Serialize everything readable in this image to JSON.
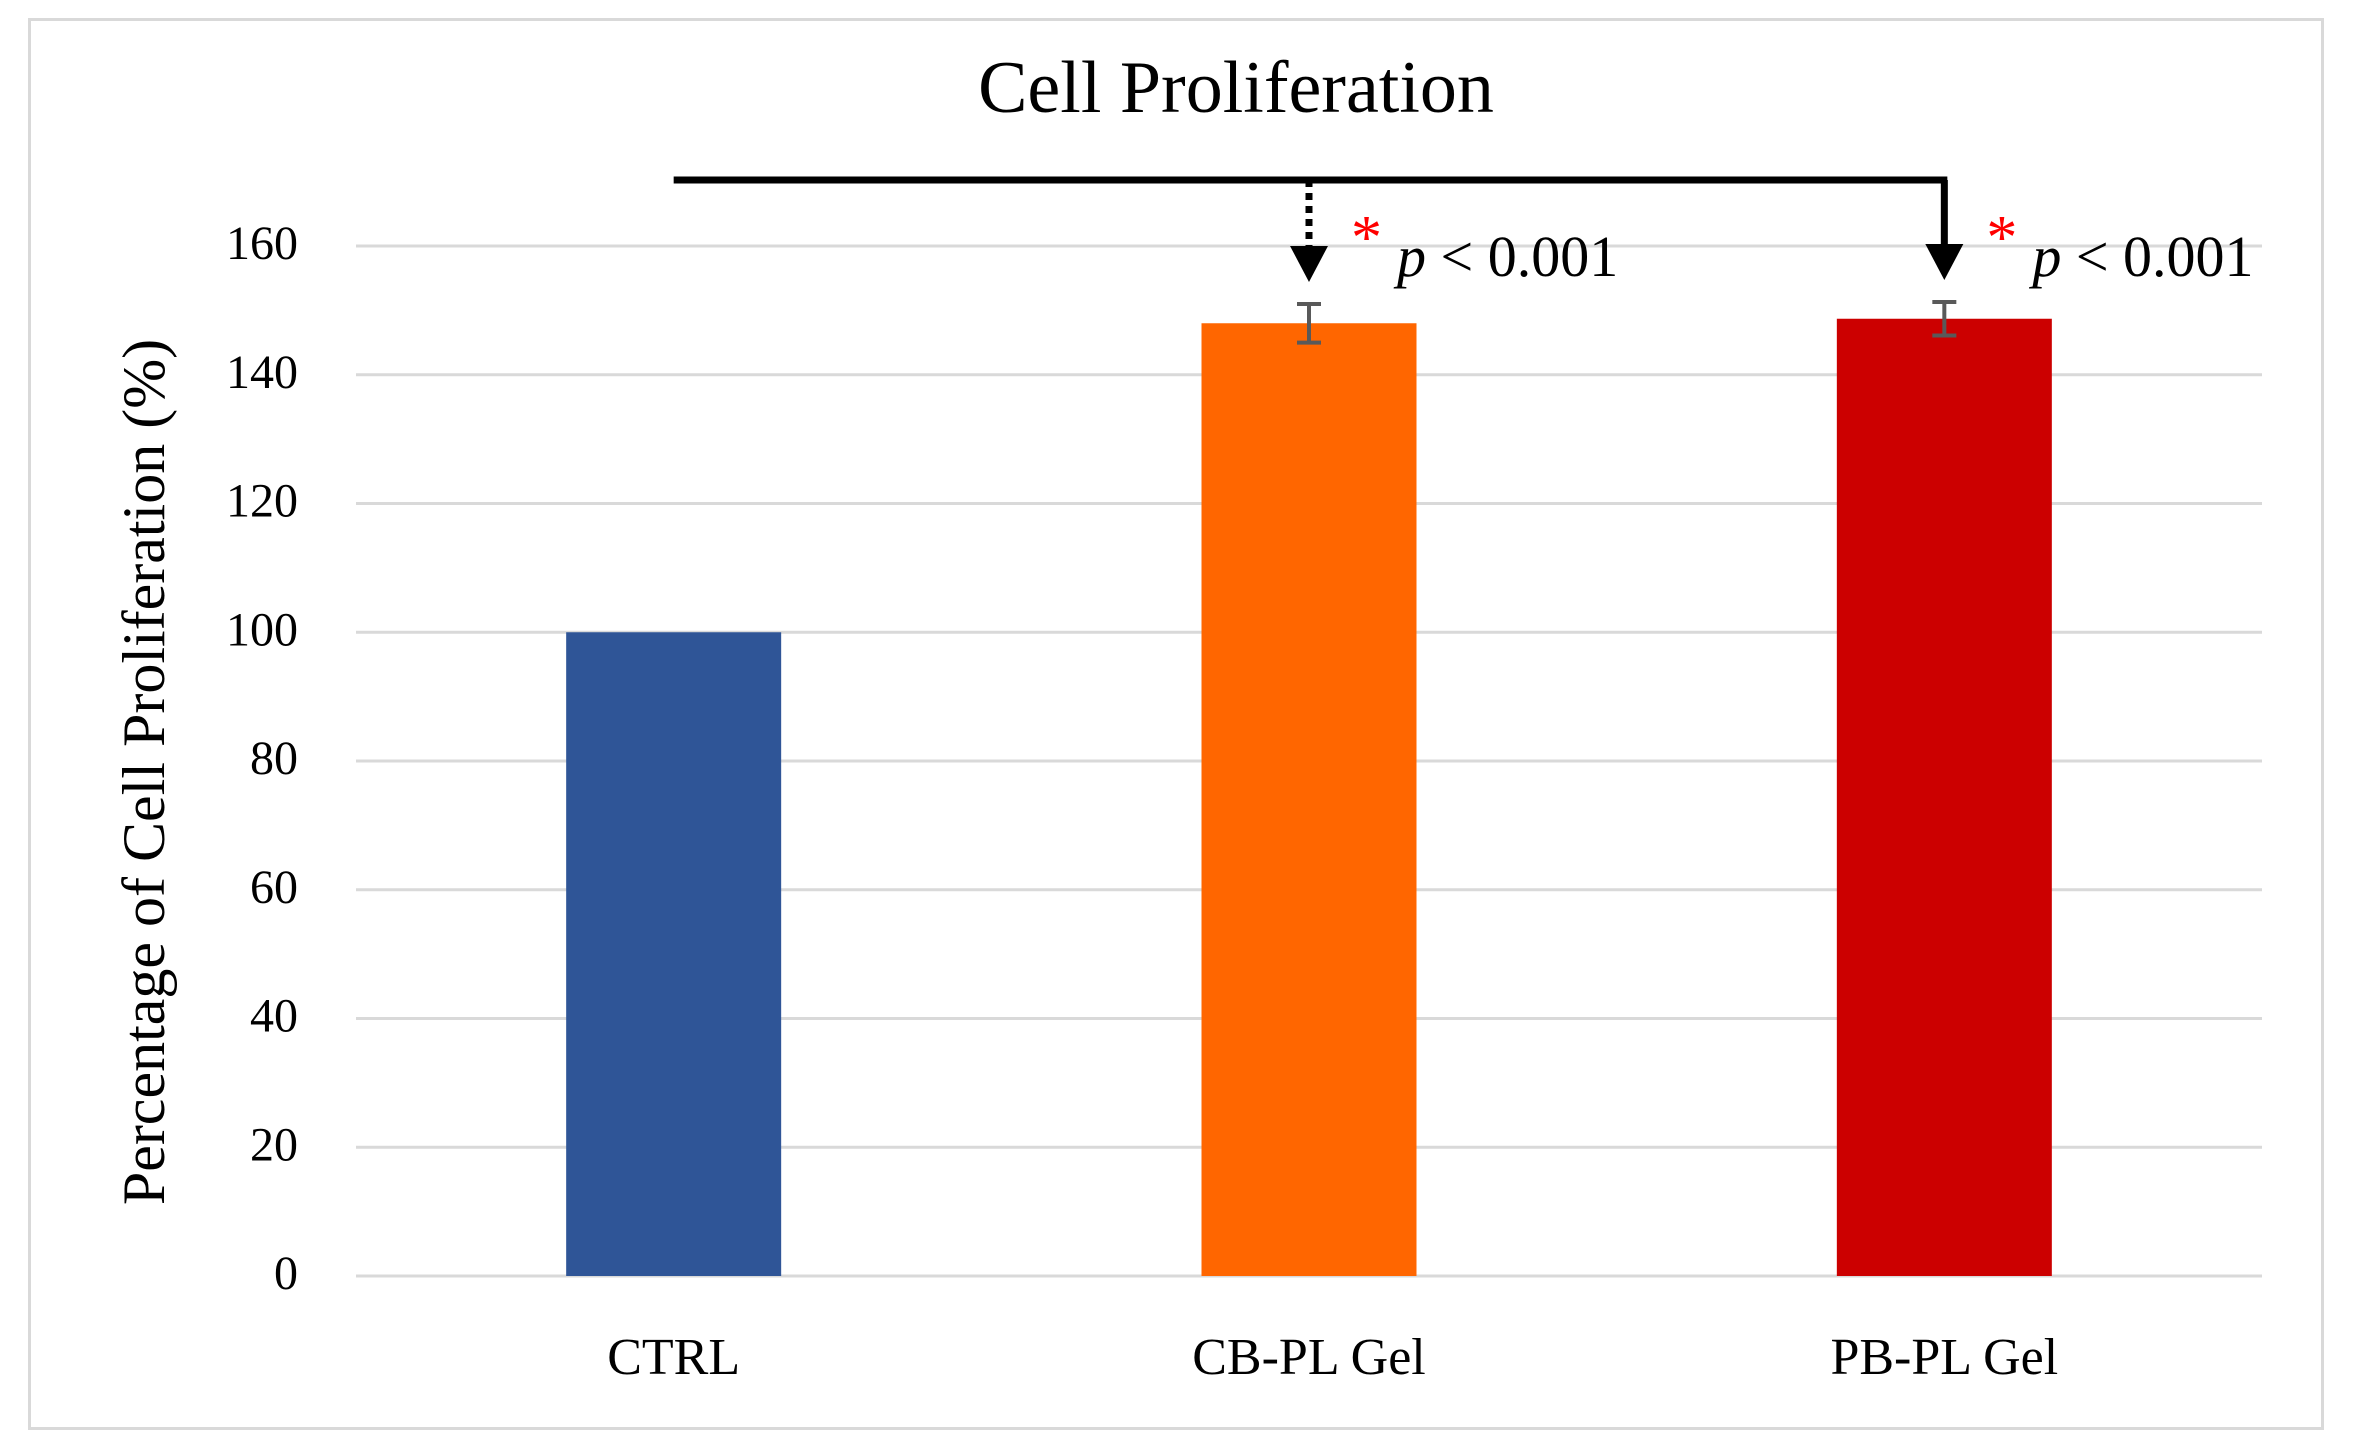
{
  "chart_data": {
    "type": "bar",
    "title": "Cell Proliferation",
    "xlabel": "",
    "ylabel": "Percentage of Cell Proliferation (%)",
    "ylim": [
      0,
      160
    ],
    "yticks": [
      0,
      20,
      40,
      60,
      80,
      100,
      120,
      140,
      160
    ],
    "categories": [
      "CTRL",
      "CB-PL Gel",
      "PB-PL Gel"
    ],
    "values": [
      100,
      148,
      148.7
    ],
    "errors": [
      0,
      3,
      2.6
    ],
    "colors": [
      "#2f5597",
      "#ff6600",
      "#cc0000"
    ],
    "grid": true,
    "annotations": [
      {
        "target": "CB-PL Gel",
        "marker": "*",
        "prefix": "p",
        "text": " < 0.001",
        "arrow_style": "dotted"
      },
      {
        "target": "PB-PL Gel",
        "marker": "*",
        "prefix": "p",
        "text": " < 0.001",
        "arrow_style": "solid"
      }
    ]
  }
}
